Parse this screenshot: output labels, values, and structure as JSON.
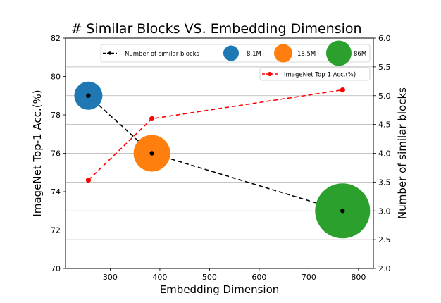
{
  "chart_data": {
    "type": "scatter",
    "title": "# Similar Blocks VS. Embedding Dimension",
    "xlabel": "Embedding Dimension",
    "ylabel_left": "ImageNet Top-1 Acc.(%)",
    "ylabel_right": "Number of similar blocks",
    "xlim": [
      210,
      830
    ],
    "ylim_left": [
      70,
      82
    ],
    "ylim_right": [
      2.0,
      6.0
    ],
    "xticks": [
      "300",
      "400",
      "500",
      "600",
      "700",
      "800"
    ],
    "yticks_left": [
      "70",
      "72",
      "74",
      "76",
      "78",
      "80",
      "82"
    ],
    "yticks_right": [
      "2.0",
      "2.5",
      "3.0",
      "3.5",
      "4.0",
      "4.5",
      "5.0",
      "5.5",
      "6.0"
    ],
    "grid": "horizontal (right axis)",
    "series": [
      {
        "name": "Number of similar blocks",
        "axis": "right",
        "style": "dashed-line",
        "color": "#000000",
        "x": [
          256,
          384,
          768
        ],
        "y": [
          5.0,
          4.0,
          3.0
        ]
      },
      {
        "name": "ImageNet Top-1 Acc.(%)",
        "axis": "left",
        "style": "dashed-line",
        "color": "#ff0000",
        "x": [
          256,
          384,
          768
        ],
        "y": [
          74.6,
          77.8,
          79.3
        ]
      }
    ],
    "bubbles": {
      "axis": "left",
      "size_legend": [
        "8.1M",
        "18.5M",
        "86M"
      ],
      "points": [
        {
          "x": 256,
          "y": 79.0,
          "params": "8.1M",
          "color": "#1f77b4"
        },
        {
          "x": 384,
          "y": 76.0,
          "params": "18.5M",
          "color": "#ff7f0e"
        },
        {
          "x": 768,
          "y": 73.0,
          "params": "86M",
          "color": "#2ca02c"
        }
      ]
    },
    "legend_placement": "top-right"
  }
}
